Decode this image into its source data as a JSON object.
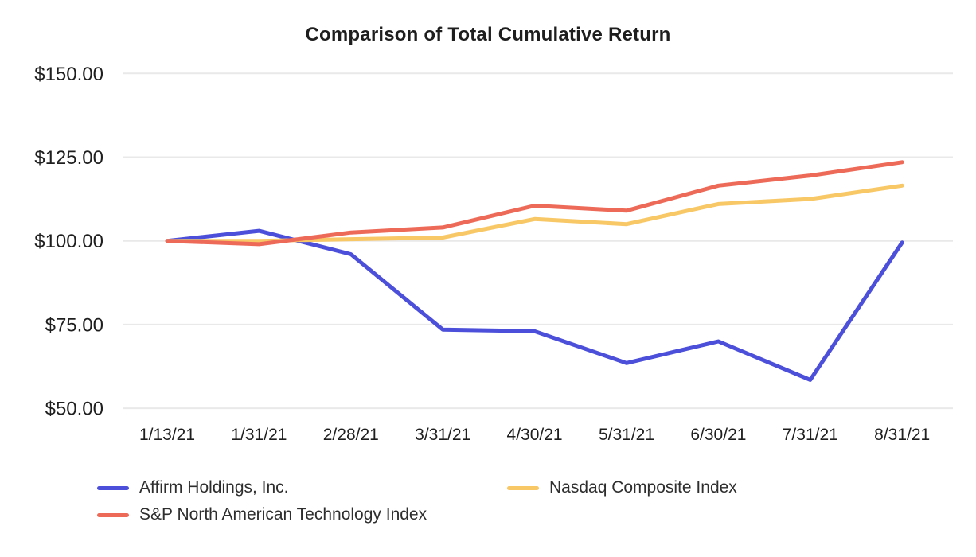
{
  "chart": {
    "title": "Comparison of Total Cumulative Return"
  },
  "chart_data": {
    "type": "line",
    "title": "Comparison of Total Cumulative Return",
    "xlabel": "",
    "ylabel": "",
    "categories": [
      "1/13/21",
      "1/31/21",
      "2/28/21",
      "3/31/21",
      "4/30/21",
      "5/31/21",
      "6/30/21",
      "7/31/21",
      "8/31/21"
    ],
    "series": [
      {
        "name": "Affirm Holdings, Inc.",
        "color": "#4b4fd9",
        "values": [
          100,
          103,
          96,
          73.5,
          73,
          63.5,
          70,
          58.5,
          99.5
        ]
      },
      {
        "name": "Nasdaq Composite Index",
        "color": "#f8c766",
        "values": [
          100,
          100,
          100.5,
          101,
          106.5,
          105,
          111,
          112.5,
          116.5
        ]
      },
      {
        "name": "S&P North American Technology Index",
        "color": "#ee6a58",
        "values": [
          100,
          99,
          102.5,
          104,
          110.5,
          109,
          116.5,
          119.5,
          123.5
        ]
      }
    ],
    "y_ticks": [
      {
        "label": "$150.00",
        "value": 150
      },
      {
        "label": "$125.00",
        "value": 125
      },
      {
        "label": "$100.00",
        "value": 100
      },
      {
        "label": "$75.00",
        "value": 75
      },
      {
        "label": "$50.00",
        "value": 50
      }
    ],
    "ylim": [
      50,
      150
    ],
    "grid": "horizontal",
    "legend_position": "bottom",
    "colors": {
      "gridline": "#e9e9e9",
      "title_text": "#1e1e1e",
      "axis_text": "#1f1f1f",
      "legend_text": "#2e2e2e",
      "background": "#ffffff"
    }
  }
}
